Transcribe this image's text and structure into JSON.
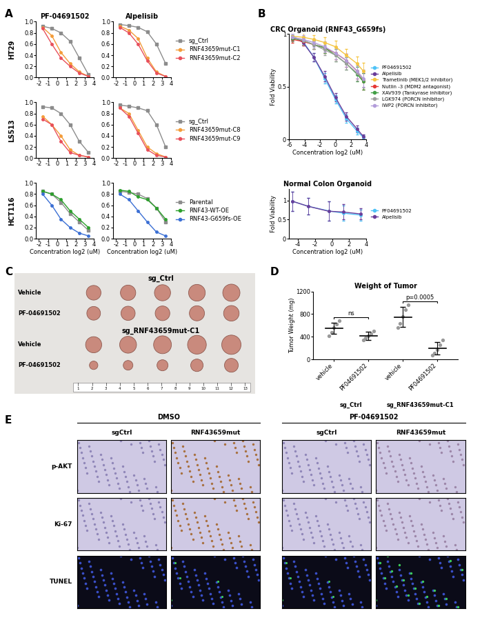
{
  "panel_labels": [
    "A",
    "B",
    "C",
    "D",
    "E"
  ],
  "panel_A": {
    "columns": [
      "PF-04691502",
      "Alpelisib"
    ],
    "rows": [
      "HT29",
      "LS513",
      "HCT116"
    ]
  },
  "chart_data": [
    {
      "type": "line",
      "x": [
        -1.6,
        -0.6,
        0.4,
        1.4,
        2.4,
        3.4
      ],
      "xlim": [
        -2.3,
        4
      ],
      "xticks": [
        -2,
        -1,
        0,
        1,
        2,
        3,
        4
      ],
      "ylim": [
        0,
        1.0
      ],
      "yticks": [
        0.0,
        0.2,
        0.4,
        0.6,
        0.8,
        1.0
      ],
      "series": [
        {
          "color": "#8c8c8c",
          "marker": "square",
          "values": [
            0.92,
            0.88,
            0.8,
            0.65,
            0.35,
            0.05
          ]
        },
        {
          "color": "#f39c3a",
          "marker": "circle",
          "values": [
            0.9,
            0.75,
            0.45,
            0.25,
            0.1,
            0.02
          ]
        },
        {
          "color": "#e8505b",
          "marker": "circle",
          "values": [
            0.88,
            0.6,
            0.35,
            0.2,
            0.08,
            0.02
          ]
        }
      ]
    },
    {
      "type": "line",
      "x": [
        -1.6,
        -0.6,
        0.4,
        1.4,
        2.4,
        3.4
      ],
      "xlim": [
        -2.3,
        4
      ],
      "xticks": [
        -2,
        -1,
        0,
        1,
        2,
        3,
        4
      ],
      "ylim": [
        0,
        1.0
      ],
      "yticks": [
        0.0,
        0.2,
        0.4,
        0.6,
        0.8,
        1.0
      ],
      "legend": "center left",
      "series": [
        {
          "name": "sg_Ctrl",
          "color": "#8c8c8c",
          "marker": "square",
          "values": [
            0.95,
            0.93,
            0.9,
            0.82,
            0.6,
            0.25
          ]
        },
        {
          "name": "RNF43659mut-C1",
          "color": "#f39c3a",
          "marker": "circle",
          "values": [
            0.92,
            0.85,
            0.7,
            0.35,
            0.1,
            0.02
          ]
        },
        {
          "name": "RNF43659mut-C2",
          "color": "#e8505b",
          "marker": "circle",
          "values": [
            0.9,
            0.8,
            0.6,
            0.3,
            0.08,
            0.02
          ]
        }
      ]
    },
    {
      "type": "line",
      "x": [
        -1.6,
        -0.6,
        0.4,
        1.4,
        2.4,
        3.4
      ],
      "xlim": [
        -2.3,
        4
      ],
      "xticks": [
        -2,
        -1,
        0,
        1,
        2,
        3,
        4
      ],
      "ylim": [
        0,
        1.0
      ],
      "yticks": [
        0.0,
        0.2,
        0.4,
        0.6,
        0.8,
        1.0
      ],
      "series": [
        {
          "color": "#8c8c8c",
          "marker": "square",
          "values": [
            0.92,
            0.9,
            0.8,
            0.6,
            0.3,
            0.1
          ]
        },
        {
          "color": "#f39c3a",
          "marker": "circle",
          "values": [
            0.75,
            0.6,
            0.4,
            0.15,
            0.05,
            0.02
          ]
        },
        {
          "color": "#e8505b",
          "marker": "circle",
          "values": [
            0.7,
            0.6,
            0.3,
            0.1,
            0.05,
            0.02
          ]
        }
      ]
    },
    {
      "type": "line",
      "x": [
        -1.6,
        -0.6,
        0.4,
        1.4,
        2.4,
        3.4
      ],
      "xlim": [
        -2.3,
        4
      ],
      "xticks": [
        -2,
        -1,
        0,
        1,
        2,
        3,
        4
      ],
      "ylim": [
        0,
        1.0
      ],
      "yticks": [
        0.0,
        0.2,
        0.4,
        0.6,
        0.8,
        1.0
      ],
      "legend": "center left",
      "series": [
        {
          "name": "sg_Ctrl",
          "color": "#8c8c8c",
          "marker": "square",
          "values": [
            0.95,
            0.93,
            0.9,
            0.85,
            0.6,
            0.2
          ]
        },
        {
          "name": "RNF43659mut-C8",
          "color": "#f39c3a",
          "marker": "circle",
          "values": [
            0.9,
            0.8,
            0.5,
            0.2,
            0.08,
            0.02
          ]
        },
        {
          "name": "RNF43659mut-C9",
          "color": "#e8505b",
          "marker": "circle",
          "values": [
            0.9,
            0.75,
            0.45,
            0.15,
            0.05,
            0.02
          ]
        }
      ]
    },
    {
      "type": "line",
      "x": [
        -1.6,
        -0.6,
        0.4,
        1.4,
        2.4,
        3.4
      ],
      "xlim": [
        -2.3,
        4
      ],
      "xticks": [
        -2,
        -1,
        0,
        1,
        2,
        3,
        4
      ],
      "ylim": [
        0,
        1.0
      ],
      "yticks": [
        0.0,
        0.2,
        0.4,
        0.6,
        0.8,
        1.0
      ],
      "x_label": "Concentration log2 (uM)",
      "series": [
        {
          "color": "#8c8c8c",
          "marker": "square",
          "values": [
            0.85,
            0.8,
            0.65,
            0.45,
            0.3,
            0.15
          ]
        },
        {
          "color": "#2ca02c",
          "marker": "circle",
          "values": [
            0.85,
            0.8,
            0.7,
            0.5,
            0.35,
            0.2
          ]
        },
        {
          "color": "#3b6fd4",
          "marker": "circle",
          "values": [
            0.8,
            0.6,
            0.35,
            0.2,
            0.1,
            0.05
          ]
        }
      ]
    },
    {
      "type": "line",
      "x": [
        -1.6,
        -0.6,
        0.4,
        1.4,
        2.4,
        3.4
      ],
      "xlim": [
        -2.3,
        4
      ],
      "xticks": [
        -2,
        -1,
        0,
        1,
        2,
        3,
        4
      ],
      "ylim": [
        0,
        1.0
      ],
      "yticks": [
        0.0,
        0.2,
        0.4,
        0.6,
        0.8,
        1.0
      ],
      "x_label": "Concentration log2 (uM)",
      "legend": "center left",
      "series": [
        {
          "name": "Parental",
          "color": "#8c8c8c",
          "marker": "square",
          "values": [
            0.85,
            0.83,
            0.8,
            0.72,
            0.55,
            0.3
          ]
        },
        {
          "name": "RNF43-WT-OE",
          "color": "#2ca02c",
          "marker": "circle",
          "values": [
            0.87,
            0.85,
            0.75,
            0.7,
            0.55,
            0.35
          ]
        },
        {
          "name": "RNF43-G659fs-OE",
          "color": "#3b6fd4",
          "marker": "circle",
          "values": [
            0.8,
            0.7,
            0.5,
            0.3,
            0.12,
            0.05
          ]
        }
      ]
    },
    {
      "type": "line",
      "title": "CRC Organoid (RNF43_G659fs)",
      "x_label": "Concentration log2 (uM)",
      "y_label": "Fold Viability",
      "x": [
        -5.6,
        -4.2,
        -2.8,
        -1.4,
        0,
        1.4,
        2.8,
        3.6
      ],
      "xlim": [
        -6,
        4
      ],
      "xticks": [
        -6,
        -4,
        -2,
        0,
        2,
        4
      ],
      "ylim": [
        0,
        1
      ],
      "yticks": [
        0,
        0.5,
        1
      ],
      "legend": "center left",
      "series": [
        {
          "name": "PF04691502",
          "color": "#4fc3f7",
          "marker": "circle",
          "values": [
            0.98,
            0.93,
            0.78,
            0.58,
            0.38,
            0.2,
            0.08,
            0.02
          ],
          "errors": [
            0.03,
            0.03,
            0.04,
            0.05,
            0.04,
            0.04,
            0.03,
            0.02
          ]
        },
        {
          "name": "Alpelisib",
          "color": "#6a3d9a",
          "marker": "circle",
          "values": [
            0.98,
            0.92,
            0.78,
            0.6,
            0.4,
            0.22,
            0.1,
            0.03
          ],
          "errors": [
            0.03,
            0.03,
            0.04,
            0.05,
            0.04,
            0.04,
            0.03,
            0.02
          ]
        },
        {
          "name": "Trametinib (MEK1/2 inhibitor)",
          "color": "#f5c542",
          "marker": "circle",
          "values": [
            0.98,
            0.97,
            0.95,
            0.92,
            0.88,
            0.8,
            0.72,
            0.65
          ],
          "errors": [
            0.03,
            0.04,
            0.04,
            0.05,
            0.06,
            0.06,
            0.07,
            0.08
          ]
        },
        {
          "name": "Nutlin -3 (MDM2 antagonist)",
          "color": "#e53935",
          "marker": "circle",
          "values": [
            0.95,
            0.93,
            0.9,
            0.87,
            0.82,
            0.75,
            0.65,
            0.55
          ],
          "errors": [
            0.03,
            0.04,
            0.04,
            0.05,
            0.06,
            0.06,
            0.07,
            0.08
          ]
        },
        {
          "name": "XAV939 (Tankyrase inhibitor)",
          "color": "#43a047",
          "marker": "circle",
          "values": [
            0.96,
            0.94,
            0.9,
            0.87,
            0.8,
            0.72,
            0.62,
            0.55
          ],
          "errors": [
            0.03,
            0.04,
            0.04,
            0.05,
            0.06,
            0.06,
            0.07,
            0.08
          ]
        },
        {
          "name": "LGK974 (PORCN inhibitor)",
          "color": "#9e9e9e",
          "marker": "circle",
          "values": [
            0.97,
            0.94,
            0.9,
            0.85,
            0.8,
            0.72,
            0.63,
            0.57
          ],
          "errors": [
            0.03,
            0.04,
            0.04,
            0.05,
            0.06,
            0.06,
            0.07,
            0.08
          ]
        },
        {
          "name": "IWP2 (PORCN inhibitor)",
          "color": "#b39ddb",
          "marker": "circle",
          "values": [
            0.97,
            0.95,
            0.92,
            0.88,
            0.82,
            0.75,
            0.65,
            0.58
          ],
          "errors": [
            0.03,
            0.04,
            0.04,
            0.05,
            0.06,
            0.06,
            0.07,
            0.08
          ]
        }
      ]
    },
    {
      "type": "line",
      "title": "Normal Colon Organoid",
      "x_label": "Concentration log2 (uM)",
      "y_label": "Fold Viability",
      "x": [
        -4.6,
        -2.8,
        -0.4,
        1.3,
        3.3
      ],
      "xlim": [
        -5,
        4
      ],
      "xticks": [
        -4,
        -2,
        0,
        2,
        4
      ],
      "ylim": [
        0,
        1.3
      ],
      "yticks": [
        0,
        0.5,
        1
      ],
      "legend": "center left",
      "series": [
        {
          "name": "PF04691502",
          "color": "#4fc3f7",
          "marker": "circle",
          "values": [
            0.98,
            0.85,
            0.73,
            0.67,
            0.62
          ],
          "errors": [
            0.25,
            0.22,
            0.25,
            0.2,
            0.15
          ]
        },
        {
          "name": "Alpelisib",
          "color": "#6a3d9a",
          "marker": "circle",
          "values": [
            0.98,
            0.85,
            0.72,
            0.7,
            0.65
          ],
          "errors": [
            0.25,
            0.22,
            0.25,
            0.2,
            0.15
          ]
        }
      ]
    },
    {
      "type": "dot",
      "title": "Weight of Tumor",
      "y_label": "Tumor Weight (mg)",
      "categories": [
        "vehicle",
        "PF04691502",
        "vehicle",
        "PF04691502"
      ],
      "values": [
        [
          420,
          480,
          560,
          620,
          680
        ],
        [
          340,
          380,
          420,
          460,
          500
        ],
        [
          560,
          640,
          760,
          880,
          960
        ],
        [
          80,
          120,
          180,
          260,
          350
        ]
      ],
      "means": [
        550,
        420,
        750,
        200
      ],
      "sd": [
        100,
        70,
        180,
        110
      ],
      "color": "#9a9a9a",
      "ylim": [
        0,
        1200
      ],
      "yticks": [
        0,
        400,
        800,
        1200
      ],
      "groups": [
        {
          "name": "sg_Ctrl",
          "members": [
            0,
            1
          ]
        },
        {
          "name": "sg_RNF43659mut-C1",
          "members": [
            2,
            3
          ]
        }
      ],
      "comparisons": [
        {
          "between": [
            0,
            1
          ],
          "label": "ns"
        },
        {
          "between": [
            2,
            3
          ],
          "label": "p=0.0005"
        }
      ]
    }
  ],
  "panel_C": {
    "groups": [
      {
        "name": "sg_Ctrl",
        "rows": [
          "Vehicle",
          "PF-04691502"
        ]
      },
      {
        "name": "sg_RNF43659mut-C1",
        "rows": [
          "Vehicle",
          "PF-04691502"
        ]
      }
    ],
    "ruler": [
      1,
      2,
      3,
      4,
      5,
      6,
      7,
      8,
      9,
      10,
      11,
      12,
      13
    ]
  },
  "panel_E": {
    "treatments": [
      "DMSO",
      "PF-04691502"
    ],
    "columns": [
      "sgCtrl",
      "RNF43659mut",
      "sgCtrl",
      "RNF43659mut"
    ],
    "rows": [
      "p-AKT",
      "Ki-67",
      "TUNEL"
    ]
  }
}
